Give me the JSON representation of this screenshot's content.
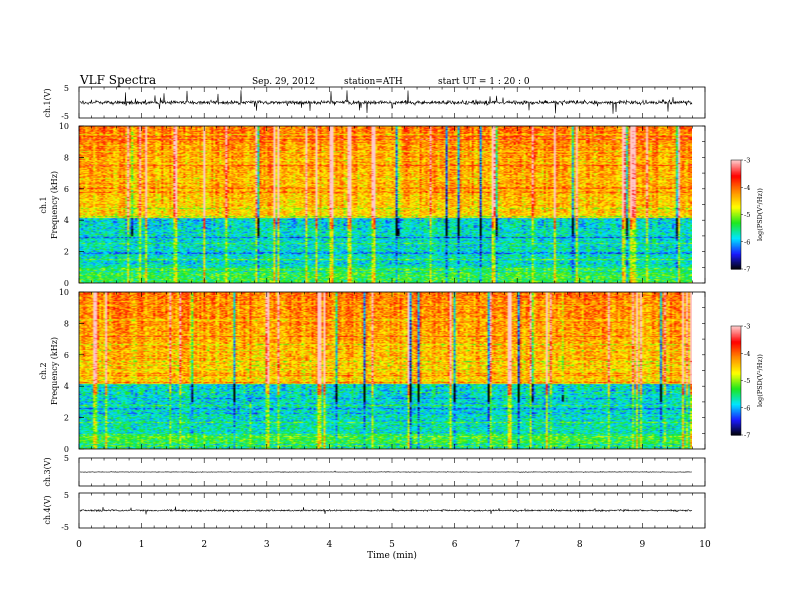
{
  "header": {
    "title": "VLF  Spectra",
    "date": "Sep. 29, 2012",
    "station": "station=ATH",
    "start": "start  UT =   1  : 20 : 0"
  },
  "chart_data": [
    {
      "type": "line",
      "id": "ch1",
      "ylabel": "ch.1(V)",
      "ylim": [
        -5,
        5
      ],
      "ytick_labels": [
        "5",
        "-5"
      ],
      "xlim": [
        0,
        10
      ],
      "series": [
        {
          "values": []
        }
      ]
    },
    {
      "type": "heatmap",
      "id": "spec1",
      "ylabel": "ch.1\nFrequency  (kHz)",
      "ylim": [
        0,
        10
      ],
      "ytick_labels": [
        "0",
        "2",
        "4",
        "6",
        "8",
        "10"
      ],
      "xlim": [
        0,
        10
      ],
      "colorbar": {
        "label": "log(PSD(V²/Hz))",
        "range": [
          -7,
          -3
        ],
        "tick_labels": [
          "-3",
          "-4",
          "-5",
          "-6",
          "-7"
        ]
      }
    },
    {
      "type": "heatmap",
      "id": "spec2",
      "ylabel": "ch.2\nFrequency  (kHz)",
      "ylim": [
        0,
        10
      ],
      "ytick_labels": [
        "0",
        "2",
        "4",
        "6",
        "8",
        "10"
      ],
      "xlim": [
        0,
        10
      ],
      "colorbar": {
        "label": "log(PSD(V²/Hz))",
        "range": [
          -7,
          -3
        ],
        "tick_labels": [
          "-3",
          "-4",
          "-5",
          "-6",
          "-7"
        ]
      }
    },
    {
      "type": "line",
      "id": "ch3",
      "ylabel": "ch.3(V)",
      "ylim": [
        -5,
        5
      ],
      "ytick_labels": [
        "5",
        "-5"
      ],
      "xlim": [
        0,
        10
      ],
      "series": [
        {
          "values": []
        }
      ]
    },
    {
      "type": "line",
      "id": "ch4",
      "ylabel": "ch.4(V)",
      "ylim": [
        -5,
        5
      ],
      "ytick_labels": [
        "5",
        "-5"
      ],
      "xlim": [
        0,
        10
      ],
      "series": [
        {
          "values": []
        }
      ]
    }
  ],
  "xaxis": {
    "label": "Time  (min)",
    "range": [
      0,
      10
    ],
    "tick_labels": [
      "0",
      "1",
      "2",
      "3",
      "4",
      "5",
      "6",
      "7",
      "8",
      "9",
      "10"
    ]
  },
  "colors": {
    "colorscale": [
      "#000000",
      "#1a1aff",
      "#00e5ff",
      "#1ee81e",
      "#ffff00",
      "#ff8c00",
      "#ff0000",
      "#ffc8c8"
    ],
    "trace": "#000000"
  }
}
